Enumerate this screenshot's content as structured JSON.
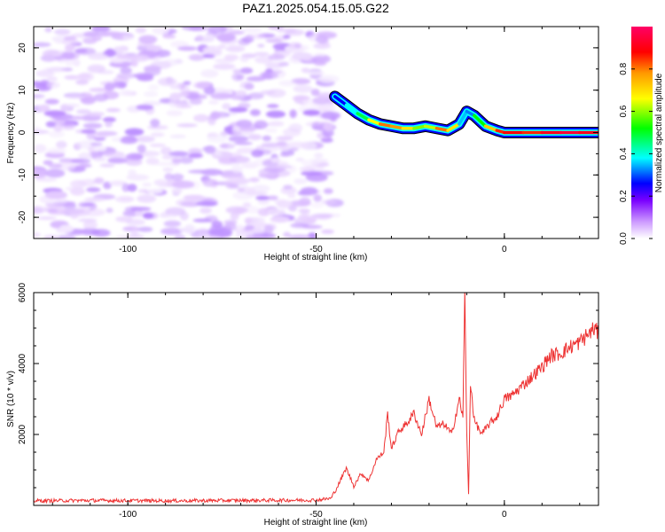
{
  "figure": {
    "title": "PAZ1.2025.054.15.05.G22"
  },
  "chart_data": [
    {
      "type": "heatmap",
      "xlabel": "Height of straight line (km)",
      "ylabel": "Frequency (Hz)",
      "xlim": [
        -125,
        25
      ],
      "ylim": [
        -25,
        25
      ],
      "xticks": [
        -100,
        -50,
        0
      ],
      "yticks": [
        -20,
        -10,
        0,
        10,
        20
      ],
      "colorbar": {
        "label": "Normalized spectral amplitude",
        "range": [
          0.0,
          1.0
        ],
        "ticks": [
          "0.0",
          "0.2",
          "0.4",
          "0.6",
          "0.8"
        ],
        "colormap": [
          "#ffffff",
          "#e5ccff",
          "#b27fff",
          "#7a00ff",
          "#0000ff",
          "#00ffff",
          "#00ff00",
          "#ffff00",
          "#ff9900",
          "#ff0000",
          "#ff0066"
        ]
      },
      "noise_region": {
        "x_range": [
          -125,
          -45
        ],
        "y_range": [
          -25,
          25
        ]
      },
      "ridge": {
        "x": [
          -45,
          -42,
          -39,
          -36,
          -33,
          -30,
          -27,
          -24,
          -21,
          -18,
          -15,
          -12,
          -10,
          -8,
          -5,
          -2,
          0,
          5,
          10,
          15,
          20,
          25
        ],
        "y": [
          8.5,
          6.5,
          4.5,
          3.0,
          2.0,
          1.5,
          1.0,
          1.0,
          1.5,
          1.0,
          0.5,
          2.0,
          5.0,
          4.0,
          1.5,
          0.5,
          0.0,
          0.0,
          0.0,
          0.0,
          0.0,
          0.0
        ],
        "amplitude": [
          0.35,
          0.45,
          0.55,
          0.6,
          0.8,
          0.85,
          0.75,
          0.7,
          0.6,
          0.75,
          0.9,
          0.55,
          0.4,
          0.5,
          0.7,
          0.8,
          0.95,
          0.85,
          0.9,
          0.95,
          0.95,
          0.9
        ]
      }
    },
    {
      "type": "line",
      "xlabel": "Height of straight line (km)",
      "ylabel": "SNR (10 * v/v)",
      "xlim": [
        -125,
        25
      ],
      "ylim": [
        0,
        6000
      ],
      "xticks": [
        -100,
        -50,
        0
      ],
      "yticks": [
        2000,
        4000,
        6000
      ],
      "color": "#ee3333",
      "series": [
        {
          "x": [
            -125,
            -110,
            -90,
            -70,
            -50,
            -46,
            -44,
            -42,
            -40,
            -38,
            -36,
            -34,
            -32,
            -31,
            -30,
            -28,
            -26,
            -24,
            -22,
            -20,
            -18,
            -16,
            -14,
            -12,
            -11,
            -10.5,
            -10,
            -9.5,
            -9,
            -8,
            -6,
            -4,
            -2,
            0,
            2,
            5,
            8,
            10,
            12,
            15,
            18,
            20,
            22,
            24,
            25
          ],
          "y": [
            130,
            140,
            130,
            140,
            150,
            200,
            600,
            1050,
            550,
            900,
            700,
            1300,
            1500,
            2600,
            1600,
            2100,
            2300,
            2600,
            2000,
            3000,
            2200,
            2300,
            2000,
            3000,
            2500,
            6000,
            2000,
            300,
            3500,
            2400,
            2000,
            2300,
            2500,
            3000,
            3100,
            3400,
            3700,
            3900,
            4200,
            4300,
            4500,
            4600,
            4800,
            5000,
            4800
          ]
        }
      ]
    }
  ]
}
